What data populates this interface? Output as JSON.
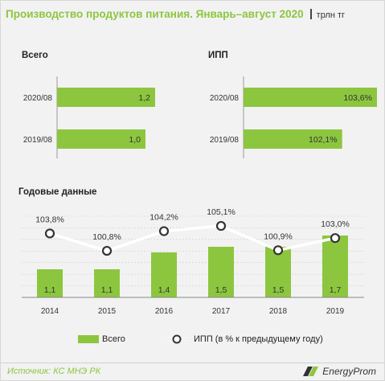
{
  "header": {
    "title": "Производство продуктов питания. Январь–август 2020",
    "unit": "трлн тг"
  },
  "colors": {
    "bar": "#8cc63f",
    "line": "#ffffff",
    "point_fill": "#ffffff",
    "point_stroke": "#333333"
  },
  "chart_data": [
    {
      "type": "bar",
      "orientation": "horizontal",
      "title": "Всего",
      "categories": [
        "2020/08",
        "2019/08"
      ],
      "values": [
        1.2,
        1.0
      ],
      "value_labels": [
        "1,2",
        "1,0"
      ],
      "xlim": [
        0,
        1.2
      ]
    },
    {
      "type": "bar",
      "orientation": "horizontal",
      "title": "ИПП",
      "categories": [
        "2020/08",
        "2019/08"
      ],
      "values": [
        103.6,
        102.1
      ],
      "value_labels": [
        "103,6%",
        "102,1%"
      ],
      "xlim": [
        100,
        103.6
      ]
    },
    {
      "type": "bar+line",
      "title": "Годовые данные",
      "categories": [
        "2014",
        "2015",
        "2016",
        "2017",
        "2018",
        "2019"
      ],
      "series": [
        {
          "name": "Всего",
          "type": "bar",
          "values": [
            1.1,
            1.1,
            1.4,
            1.5,
            1.5,
            1.7
          ],
          "value_labels": [
            "1,1",
            "1,1",
            "1,4",
            "1,5",
            "1,5",
            "1,7"
          ]
        },
        {
          "name": "ИПП (в % к предыдущему году)",
          "type": "line",
          "values": [
            103.8,
            100.8,
            104.2,
            105.1,
            100.9,
            103.0
          ],
          "value_labels": [
            "103,8%",
            "100,8%",
            "104,2%",
            "105,1%",
            "100,9%",
            "103,0%"
          ]
        }
      ],
      "grid": true,
      "legend_position": "bottom"
    }
  ],
  "footer": {
    "source": "Источник: КС МНЭ РК",
    "logo_text": "EnergyProm"
  }
}
